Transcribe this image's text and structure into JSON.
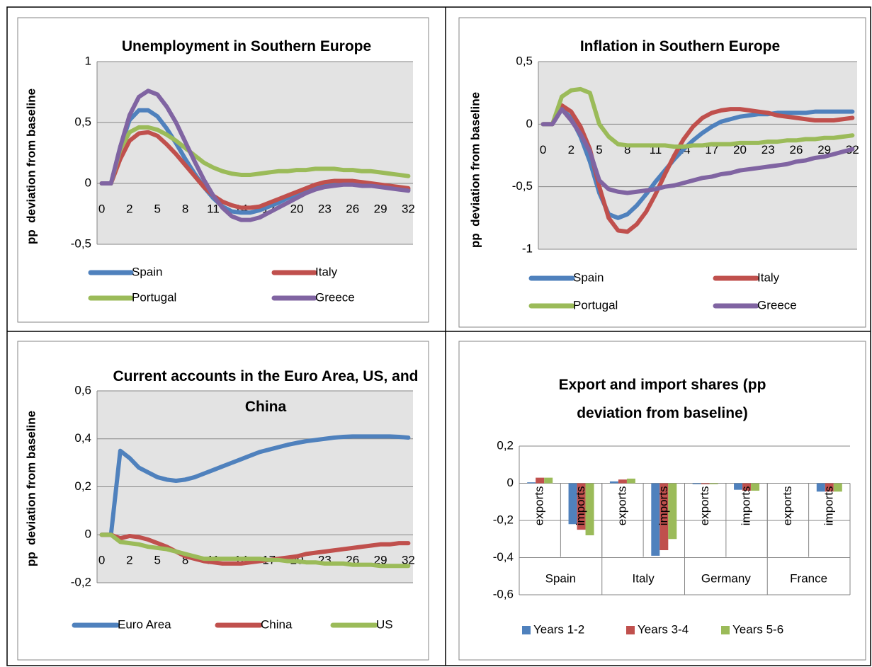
{
  "chart_data": [
    {
      "type": "line",
      "title": "Unemployment in Southern Europe",
      "y_label": "pp  deviation from baseline",
      "categories": [
        0,
        null,
        null,
        2,
        null,
        null,
        5,
        null,
        null,
        8,
        null,
        null,
        11,
        null,
        null,
        14,
        null,
        null,
        17,
        null,
        null,
        20,
        null,
        null,
        23,
        null,
        null,
        26,
        null,
        null,
        29,
        null,
        null,
        32
      ],
      "ylim": [
        -0.5,
        1
      ],
      "yticks": [
        {
          "value": -0.5,
          "label": "-0,5"
        },
        0,
        {
          "value": 0.5,
          "label": "0,5"
        },
        1
      ],
      "grid": true,
      "legend": "bottom",
      "series": [
        {
          "name": "Spain",
          "color": "#4f81bd",
          "values": [
            0,
            0,
            0.3,
            0.52,
            0.6,
            0.6,
            0.55,
            0.45,
            0.33,
            0.2,
            0.08,
            -0.03,
            -0.12,
            -0.19,
            -0.23,
            -0.24,
            -0.24,
            -0.22,
            -0.19,
            -0.16,
            -0.12,
            -0.09,
            -0.06,
            -0.04,
            -0.02,
            -0.01,
            0,
            0,
            0,
            -0.01,
            -0.02,
            -0.03,
            -0.04,
            -0.05
          ]
        },
        {
          "name": "Italy",
          "color": "#c0504d",
          "values": [
            0,
            0,
            0.2,
            0.35,
            0.41,
            0.42,
            0.39,
            0.32,
            0.24,
            0.15,
            0.06,
            -0.03,
            -0.1,
            -0.15,
            -0.18,
            -0.2,
            -0.2,
            -0.19,
            -0.16,
            -0.13,
            -0.1,
            -0.07,
            -0.04,
            -0.01,
            0.01,
            0.02,
            0.02,
            0.02,
            0.01,
            0,
            -0.01,
            -0.02,
            -0.03,
            -0.04
          ]
        },
        {
          "name": "Portugal",
          "color": "#9bbb59",
          "values": [
            0,
            0,
            0.28,
            0.42,
            0.46,
            0.46,
            0.44,
            0.4,
            0.35,
            0.29,
            0.23,
            0.17,
            0.13,
            0.1,
            0.08,
            0.07,
            0.07,
            0.08,
            0.09,
            0.1,
            0.1,
            0.11,
            0.11,
            0.12,
            0.12,
            0.12,
            0.11,
            0.11,
            0.1,
            0.1,
            0.09,
            0.08,
            0.07,
            0.06
          ]
        },
        {
          "name": "Greece",
          "color": "#8064a2",
          "values": [
            0,
            0,
            0.3,
            0.56,
            0.71,
            0.76,
            0.73,
            0.63,
            0.5,
            0.34,
            0.18,
            0.03,
            -0.1,
            -0.2,
            -0.27,
            -0.3,
            -0.3,
            -0.28,
            -0.24,
            -0.2,
            -0.16,
            -0.12,
            -0.08,
            -0.05,
            -0.03,
            -0.02,
            -0.01,
            -0.01,
            -0.02,
            -0.02,
            -0.03,
            -0.04,
            -0.05,
            -0.06
          ]
        }
      ]
    },
    {
      "type": "line",
      "title": "Inflation in Southern Europe",
      "y_label": "pp  deviation from baseline",
      "categories": [
        0,
        null,
        null,
        2,
        null,
        null,
        5,
        null,
        null,
        8,
        null,
        null,
        11,
        null,
        null,
        14,
        null,
        null,
        17,
        null,
        null,
        20,
        null,
        null,
        23,
        null,
        null,
        26,
        null,
        null,
        29,
        null,
        null,
        32
      ],
      "ylim": [
        -1,
        0.5
      ],
      "yticks": [
        -1,
        {
          "value": -0.5,
          "label": "-0,5"
        },
        0,
        {
          "value": 0.5,
          "label": "0,5"
        }
      ],
      "grid": true,
      "legend": "bottom",
      "series": [
        {
          "name": "Spain",
          "color": "#4f81bd",
          "values": [
            0,
            0,
            0.12,
            0.05,
            -0.1,
            -0.3,
            -0.55,
            -0.72,
            -0.75,
            -0.72,
            -0.65,
            -0.56,
            -0.46,
            -0.37,
            -0.28,
            -0.2,
            -0.13,
            -0.07,
            -0.02,
            0.02,
            0.04,
            0.06,
            0.07,
            0.08,
            0.08,
            0.09,
            0.09,
            0.09,
            0.09,
            0.1,
            0.1,
            0.1,
            0.1,
            0.1
          ]
        },
        {
          "name": "Italy",
          "color": "#c0504d",
          "values": [
            0,
            0,
            0.15,
            0.1,
            -0.02,
            -0.2,
            -0.5,
            -0.75,
            -0.85,
            -0.86,
            -0.8,
            -0.7,
            -0.56,
            -0.4,
            -0.25,
            -0.12,
            -0.02,
            0.05,
            0.09,
            0.11,
            0.12,
            0.12,
            0.11,
            0.1,
            0.09,
            0.07,
            0.06,
            0.05,
            0.04,
            0.03,
            0.03,
            0.03,
            0.04,
            0.05
          ]
        },
        {
          "name": "Portugal",
          "color": "#9bbb59",
          "values": [
            0,
            0,
            0.22,
            0.27,
            0.28,
            0.25,
            0,
            -0.1,
            -0.16,
            -0.17,
            -0.17,
            -0.17,
            -0.17,
            -0.17,
            -0.18,
            -0.18,
            -0.17,
            -0.17,
            -0.16,
            -0.16,
            -0.16,
            -0.15,
            -0.15,
            -0.15,
            -0.14,
            -0.14,
            -0.13,
            -0.13,
            -0.12,
            -0.12,
            -0.11,
            -0.11,
            -0.1,
            -0.09
          ]
        },
        {
          "name": "Greece",
          "color": "#8064a2",
          "values": [
            0,
            0,
            0.12,
            0.03,
            -0.08,
            -0.22,
            -0.45,
            -0.52,
            -0.54,
            -0.55,
            -0.54,
            -0.53,
            -0.52,
            -0.5,
            -0.49,
            -0.47,
            -0.45,
            -0.43,
            -0.42,
            -0.4,
            -0.39,
            -0.37,
            -0.36,
            -0.35,
            -0.34,
            -0.33,
            -0.32,
            -0.3,
            -0.29,
            -0.27,
            -0.26,
            -0.24,
            -0.22,
            -0.2
          ]
        }
      ]
    },
    {
      "type": "line",
      "title": "Current accounts in the Euro Area, US, and China",
      "y_label": "pp  deviation from baseline",
      "categories": [
        0,
        null,
        null,
        2,
        null,
        null,
        5,
        null,
        null,
        8,
        null,
        null,
        11,
        null,
        null,
        14,
        null,
        null,
        17,
        null,
        null,
        20,
        null,
        null,
        23,
        null,
        null,
        26,
        null,
        null,
        29,
        null,
        null,
        32
      ],
      "ylim": [
        -0.2,
        0.6
      ],
      "yticks": [
        {
          "value": -0.2,
          "label": "-0,2"
        },
        0,
        {
          "value": 0.2,
          "label": "0,2"
        },
        {
          "value": 0.4,
          "label": "0,4"
        },
        {
          "value": 0.6,
          "label": "0,6"
        }
      ],
      "grid": true,
      "legend": "bottom",
      "series": [
        {
          "name": "Euro Area",
          "color": "#4f81bd",
          "values": [
            0,
            0,
            0.35,
            0.32,
            0.28,
            0.26,
            0.24,
            0.23,
            0.225,
            0.23,
            0.24,
            0.255,
            0.27,
            0.285,
            0.3,
            0.315,
            0.33,
            0.345,
            0.355,
            0.365,
            0.375,
            0.383,
            0.39,
            0.395,
            0.4,
            0.405,
            0.408,
            0.41,
            0.41,
            0.41,
            0.41,
            0.41,
            0.408,
            0.405
          ]
        },
        {
          "name": "China",
          "color": "#c0504d",
          "values": [
            0,
            0,
            -0.015,
            -0.005,
            -0.01,
            -0.02,
            -0.035,
            -0.05,
            -0.07,
            -0.09,
            -0.1,
            -0.11,
            -0.115,
            -0.12,
            -0.12,
            -0.12,
            -0.115,
            -0.11,
            -0.105,
            -0.1,
            -0.095,
            -0.09,
            -0.08,
            -0.075,
            -0.07,
            -0.065,
            -0.06,
            -0.055,
            -0.05,
            -0.045,
            -0.04,
            -0.04,
            -0.035,
            -0.035
          ]
        },
        {
          "name": "US",
          "color": "#9bbb59",
          "values": [
            0,
            0,
            -0.03,
            -0.035,
            -0.04,
            -0.05,
            -0.055,
            -0.06,
            -0.07,
            -0.08,
            -0.09,
            -0.1,
            -0.1,
            -0.1,
            -0.1,
            -0.1,
            -0.1,
            -0.1,
            -0.105,
            -0.105,
            -0.11,
            -0.11,
            -0.115,
            -0.115,
            -0.12,
            -0.12,
            -0.12,
            -0.125,
            -0.125,
            -0.125,
            -0.13,
            -0.13,
            -0.13,
            -0.13
          ]
        }
      ]
    },
    {
      "type": "bar",
      "title": "Export and import shares (pp deviation from baseline)",
      "categories": [
        "exports",
        "imports",
        "exports",
        "imports",
        "exports",
        "imports",
        "exports",
        "imports"
      ],
      "groups": [
        "Spain",
        "Italy",
        "Germany",
        "France"
      ],
      "ylim": [
        -0.6,
        0.2
      ],
      "yticks": [
        {
          "value": -0.6,
          "label": "-0,6"
        },
        {
          "value": -0.4,
          "label": "-0,4"
        },
        {
          "value": -0.2,
          "label": "-0,2"
        },
        0,
        {
          "value": 0.2,
          "label": "0,2"
        }
      ],
      "grid": true,
      "legend": "bottom",
      "series": [
        {
          "name": "Years 1-2",
          "color": "#4f81bd",
          "values": [
            0.005,
            -0.22,
            0.01,
            -0.39,
            -0.005,
            -0.035,
            0,
            -0.045
          ]
        },
        {
          "name": "Years 3-4",
          "color": "#c0504d",
          "values": [
            0.03,
            -0.25,
            0.02,
            -0.36,
            -0.005,
            -0.04,
            0,
            -0.045
          ]
        },
        {
          "name": "Years 5-6",
          "color": "#9bbb59",
          "values": [
            0.03,
            -0.28,
            0.025,
            -0.3,
            -0.005,
            -0.04,
            0,
            -0.045
          ]
        }
      ]
    }
  ]
}
